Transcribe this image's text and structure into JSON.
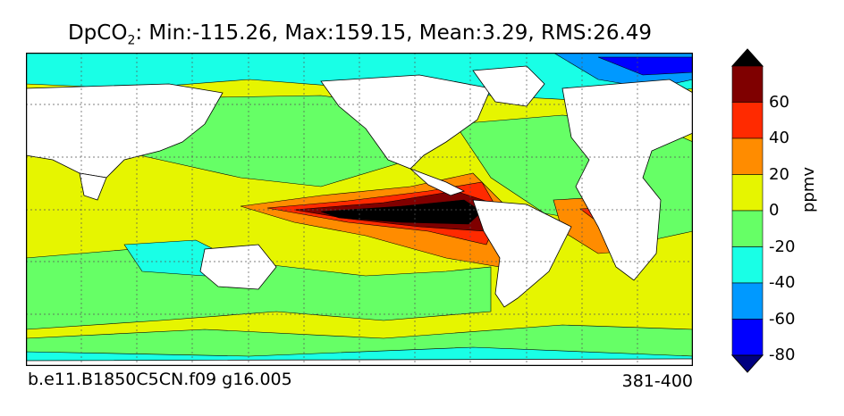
{
  "title": {
    "prefix": "DpCO",
    "subscript": "2",
    "stats": ": Min:-115.26, Max:159.15, Mean:3.29, RMS:26.49"
  },
  "footer": {
    "case_name": "b.e11.B1850C5CN.f09 g16.005",
    "years": "381-400"
  },
  "colorbar": {
    "unit_label": "ppmv",
    "tick_labels": [
      "60",
      "40",
      "20",
      "0",
      "-20",
      "-40",
      "-60",
      "-80"
    ],
    "levels": [
      {
        "range": "> 80",
        "color": "#000000"
      },
      {
        "range": "60..80",
        "color": "#7f0000"
      },
      {
        "range": "40..60",
        "color": "#ff2a00"
      },
      {
        "range": "20..40",
        "color": "#ff8c00"
      },
      {
        "range": "0..20",
        "color": "#e6f500"
      },
      {
        "range": "-20..0",
        "color": "#66ff66"
      },
      {
        "range": "-40..-20",
        "color": "#19ffe6"
      },
      {
        "range": "-60..-40",
        "color": "#0099ff"
      },
      {
        "range": "-80..-60",
        "color": "#0000ff"
      },
      {
        "range": "< -80",
        "color": "#000080"
      }
    ],
    "land_color": "#ffffff"
  }
}
